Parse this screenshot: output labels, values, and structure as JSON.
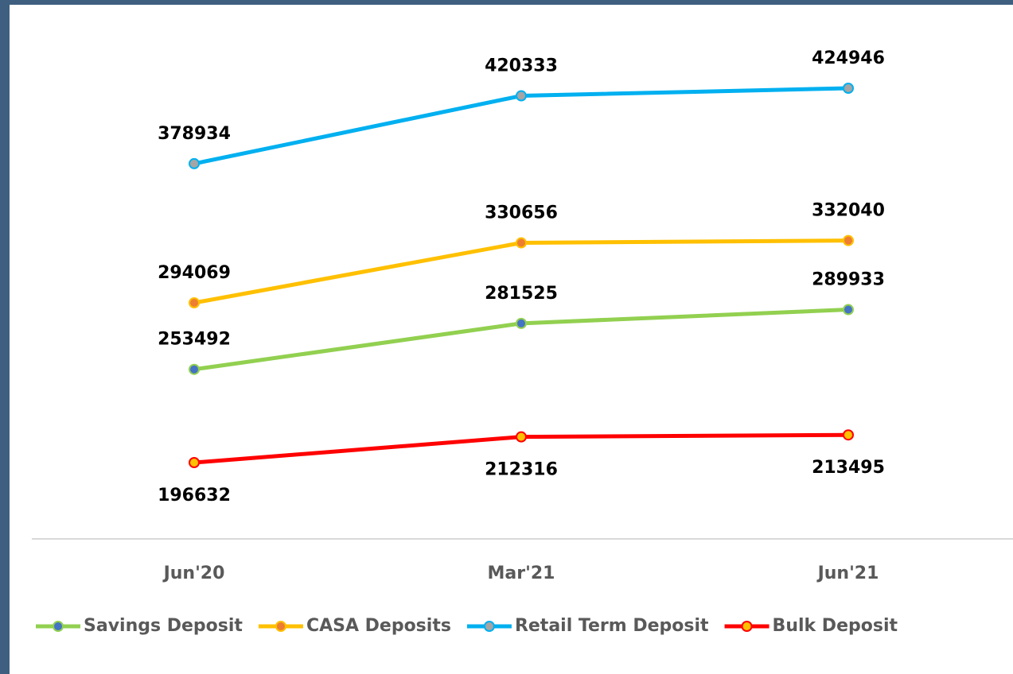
{
  "chart_data": {
    "type": "line",
    "categories": [
      "Jun'20",
      "Mar'21",
      "Jun'21"
    ],
    "series": [
      {
        "name": "Savings Deposit",
        "color": "#92d050",
        "marker_color": "#4472c4",
        "label_position": "above",
        "values": [
          253492,
          281525,
          289933
        ]
      },
      {
        "name": "CASA Deposits",
        "color": "#ffc000",
        "marker_color": "#ed7d31",
        "label_position": "above",
        "values": [
          294069,
          330656,
          332040
        ]
      },
      {
        "name": "Retail Term Deposit",
        "color": "#00b0f0",
        "marker_color": "#a5a5a5",
        "label_position": "above",
        "values": [
          378934,
          420333,
          424946
        ]
      },
      {
        "name": "Bulk Deposit",
        "color": "#ff0000",
        "marker_color": "#ffc000",
        "label_position": "below",
        "values": [
          196632,
          212316,
          213495
        ]
      }
    ],
    "grid": false,
    "legend": "bottom"
  }
}
